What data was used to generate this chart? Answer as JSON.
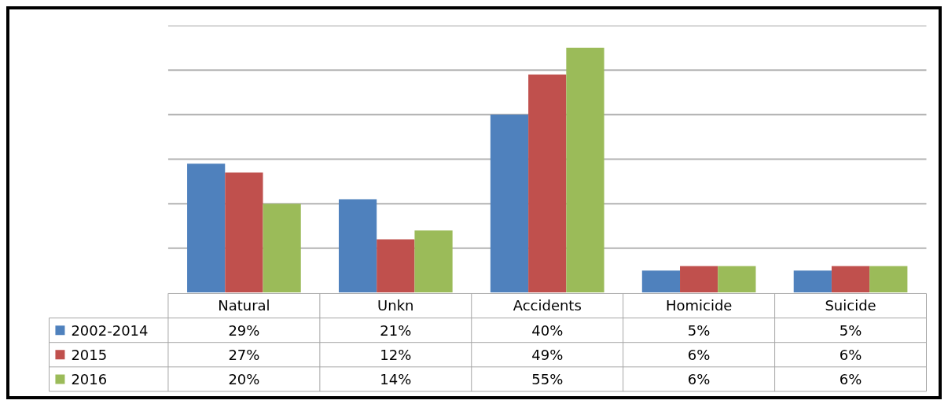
{
  "chart_data": {
    "type": "bar",
    "categories": [
      "Natural",
      "Unkn",
      "Accidents",
      "Homicide",
      "Suicide"
    ],
    "series": [
      {
        "name": "2002-2014",
        "color": "#4f81bd",
        "values": [
          29,
          21,
          40,
          5,
          5
        ],
        "value_labels": [
          "29%",
          "21%",
          "40%",
          "5%",
          "5%"
        ]
      },
      {
        "name": "2015",
        "color": "#c0504d",
        "values": [
          27,
          12,
          49,
          6,
          6
        ],
        "value_labels": [
          "27%",
          "12%",
          "49%",
          "6%",
          "6%"
        ]
      },
      {
        "name": "2016",
        "color": "#9bbb59",
        "values": [
          20,
          14,
          55,
          6,
          6
        ],
        "value_labels": [
          "20%",
          "14%",
          "55%",
          "6%",
          "6%"
        ]
      }
    ],
    "ylim": [
      0,
      60
    ],
    "yticks": [
      0,
      10,
      20,
      30,
      40,
      50,
      60
    ],
    "grid": "y",
    "tick_labels": "x",
    "legend": "bottom left"
  }
}
